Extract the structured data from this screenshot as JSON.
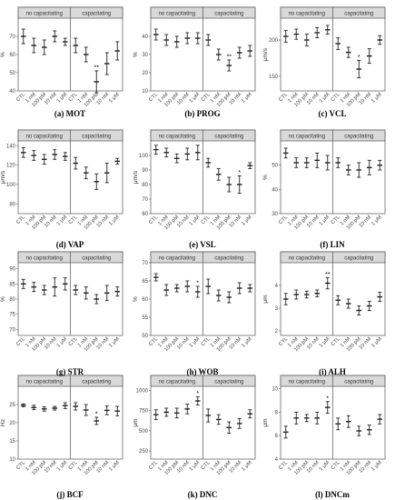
{
  "categories": [
    "CTL",
    "1 nM",
    "100 pM",
    "10 nM",
    "1 μM",
    "CTL",
    "1 nM",
    "100 pM",
    "10 nM",
    "1 μM"
  ],
  "group_labels": [
    "no capacitating",
    "capacitating"
  ],
  "colors": {
    "header_fill": "#d9d9d9",
    "mark": "#222222",
    "axis": "#555555"
  },
  "chart_data": [
    {
      "type": "scatter",
      "caption": "(a) MOT",
      "ylabel": "%",
      "ylim": [
        40,
        80
      ],
      "yticks": [
        40,
        50,
        60,
        70
      ],
      "values": [
        70,
        65,
        64,
        70,
        67,
        65,
        60,
        45,
        55,
        62
      ],
      "err": [
        4,
        4,
        4,
        3,
        2,
        4,
        4,
        6,
        6,
        5
      ],
      "sig": [
        "",
        "",
        "",
        "",
        "",
        "",
        "",
        "**",
        "",
        ""
      ]
    },
    {
      "type": "scatter",
      "caption": "(b) PROG",
      "ylabel": "%",
      "ylim": [
        10,
        50
      ],
      "yticks": [
        10,
        20,
        30,
        40
      ],
      "values": [
        41,
        38,
        37,
        39,
        39,
        38,
        30,
        24,
        31,
        32
      ],
      "err": [
        3,
        3,
        3,
        3,
        3,
        3,
        3,
        3,
        3,
        3
      ],
      "sig": [
        "",
        "",
        "",
        "",
        "",
        "",
        "",
        "**",
        "",
        ""
      ]
    },
    {
      "type": "scatter",
      "caption": "(c) VCL",
      "ylabel": "μm/s",
      "ylim": [
        130,
        230
      ],
      "yticks": [
        150,
        200
      ],
      "values": [
        205,
        208,
        200,
        210,
        214,
        195,
        183,
        160,
        178,
        200
      ],
      "err": [
        8,
        7,
        8,
        7,
        6,
        8,
        7,
        12,
        10,
        6
      ],
      "sig": [
        "",
        "",
        "",
        "",
        "",
        "",
        "",
        "*",
        "",
        ""
      ]
    },
    {
      "type": "scatter",
      "caption": "(d) VAP",
      "ylabel": "μm/s",
      "ylim": [
        70,
        145
      ],
      "yticks": [
        80,
        100,
        120,
        140
      ],
      "values": [
        133,
        130,
        126,
        131,
        129,
        122,
        112,
        103,
        112,
        124
      ],
      "err": [
        5,
        5,
        5,
        5,
        4,
        6,
        6,
        8,
        10,
        3
      ],
      "sig": [
        "",
        "",
        "",
        "",
        "",
        "",
        "",
        "",
        "",
        ""
      ]
    },
    {
      "type": "scatter",
      "caption": "(e) VSL",
      "ylabel": "μm/s",
      "ylim": [
        60,
        110
      ],
      "yticks": [
        60,
        70,
        80,
        90,
        100
      ],
      "values": [
        104,
        102,
        98,
        101,
        102,
        95,
        87,
        80,
        80,
        93
      ],
      "err": [
        3,
        3,
        3,
        4,
        5,
        3,
        4,
        5,
        6,
        2
      ],
      "sig": [
        "",
        "",
        "",
        "",
        "",
        "",
        "",
        "",
        "*",
        ""
      ]
    },
    {
      "type": "scatter",
      "caption": "(f) LIN",
      "ylabel": "%",
      "ylim": [
        30,
        60
      ],
      "yticks": [
        30,
        40,
        50
      ],
      "values": [
        55,
        51,
        51,
        52,
        51,
        51,
        48,
        48,
        49,
        50
      ],
      "err": [
        2,
        2,
        2,
        3,
        3,
        2,
        2,
        3,
        3,
        2
      ],
      "sig": [
        "",
        "",
        "",
        "",
        "",
        "",
        "",
        "",
        "",
        ""
      ]
    },
    {
      "type": "scatter",
      "caption": "(g) STR",
      "ylabel": "%",
      "ylim": [
        68,
        92
      ],
      "yticks": [
        70,
        75,
        80,
        85,
        90
      ],
      "values": [
        85,
        84,
        83,
        84,
        85,
        83,
        82,
        80,
        82,
        82.5
      ],
      "err": [
        1.5,
        1.5,
        1.5,
        3,
        2,
        1.5,
        2,
        1.5,
        2.5,
        1.5
      ],
      "sig": [
        "",
        "",
        "",
        "",
        "",
        "",
        "",
        "",
        "",
        ""
      ]
    },
    {
      "type": "scatter",
      "caption": "(h) WOB",
      "ylabel": "%",
      "ylim": [
        50,
        70
      ],
      "yticks": [
        50,
        55,
        60,
        65,
        70
      ],
      "values": [
        66,
        62.5,
        63,
        63.5,
        62,
        63.5,
        61,
        60.5,
        63,
        63
      ],
      "err": [
        1,
        1.5,
        1,
        1.5,
        1.5,
        2,
        1.5,
        1.5,
        1.5,
        1
      ],
      "sig": [
        "",
        "",
        "",
        "",
        "*",
        "",
        "",
        "",
        "",
        ""
      ]
    },
    {
      "type": "scatter",
      "caption": "(i) ALH",
      "ylabel": "μm",
      "ylim": [
        1.8,
        5
      ],
      "yticks": [
        2,
        3,
        4
      ],
      "values": [
        3.4,
        3.6,
        3.6,
        3.65,
        4.1,
        3.35,
        3.2,
        2.9,
        3.1,
        3.5
      ],
      "err": [
        0.25,
        0.2,
        0.15,
        0.15,
        0.25,
        0.2,
        0.2,
        0.2,
        0.2,
        0.2
      ],
      "sig": [
        "",
        "",
        "",
        "",
        "**",
        "",
        "",
        "",
        "",
        ""
      ]
    },
    {
      "type": "scatter",
      "caption": "(j) BCF",
      "ylabel": "Hz",
      "ylim": [
        10,
        30
      ],
      "yticks": [
        10,
        15,
        20,
        25
      ],
      "values": [
        24.8,
        24.2,
        23.8,
        24,
        24.7,
        24.5,
        23.5,
        20.5,
        23.4,
        23.2
      ],
      "err": [
        0.4,
        0.6,
        0.6,
        0.5,
        0.8,
        1,
        1.5,
        1,
        1.2,
        1.3
      ],
      "sig": [
        "",
        "",
        "",
        "",
        "",
        "",
        "",
        "*",
        "",
        ""
      ]
    },
    {
      "type": "scatter",
      "caption": "(k) DNC",
      "ylabel": "μm",
      "ylim": [
        150,
        1050
      ],
      "yticks": [
        250,
        500,
        750,
        1000
      ],
      "values": [
        700,
        730,
        720,
        770,
        870,
        690,
        640,
        540,
        590,
        710
      ],
      "err": [
        60,
        50,
        60,
        60,
        50,
        80,
        60,
        70,
        60,
        50
      ],
      "sig": [
        "",
        "",
        "",
        "",
        "*",
        "",
        "",
        "",
        "",
        ""
      ]
    },
    {
      "type": "scatter",
      "caption": "(l) DNCm",
      "ylabel": "μm",
      "ylim": [
        4,
        10.2
      ],
      "yticks": [
        4,
        6,
        8,
        10
      ],
      "values": [
        6.3,
        7.5,
        7.5,
        7.5,
        8.4,
        7,
        7.2,
        6.4,
        6.5,
        7.4
      ],
      "err": [
        0.5,
        0.5,
        0.3,
        0.5,
        0.5,
        0.5,
        0.5,
        0.4,
        0.4,
        0.4
      ],
      "sig": [
        "",
        "",
        "",
        "",
        "*",
        "",
        "",
        "",
        "",
        ""
      ]
    }
  ]
}
